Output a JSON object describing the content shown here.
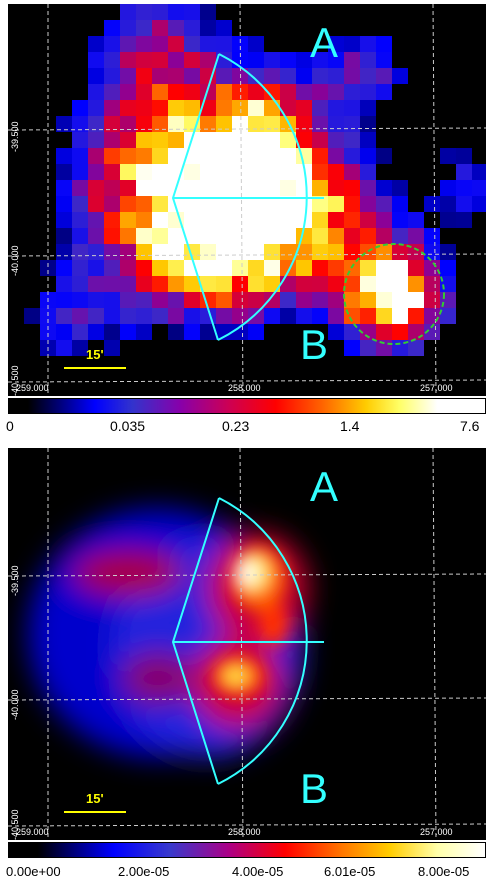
{
  "top_panel": {
    "region_labels": [
      "A",
      "B"
    ],
    "scale_label": "15'",
    "ra_ticks": [
      "259.000",
      "258.000",
      "257.000"
    ],
    "dec_ticks": [
      "-39.500",
      "-40.000",
      "-40.500"
    ],
    "colorbar_ticks": [
      "0",
      "0.035",
      "0.23",
      "1.4",
      "7.6"
    ]
  },
  "bottom_panel": {
    "region_labels": [
      "A",
      "B"
    ],
    "scale_label": "15'",
    "ra_ticks": [
      "259.000",
      "258.000",
      "257.000"
    ],
    "dec_ticks": [
      "-39.500",
      "-40.000",
      "-40.500"
    ],
    "colorbar_ticks": [
      "0.00e+00",
      "2.00e-05",
      "4.00e-05",
      "6.01e-05",
      "8.00e-05"
    ]
  },
  "colors": {
    "region_outline": "#33ffff",
    "source_circle": "#33cc33",
    "scale_bar": "#ffff00",
    "grid": "#cccccc"
  }
}
